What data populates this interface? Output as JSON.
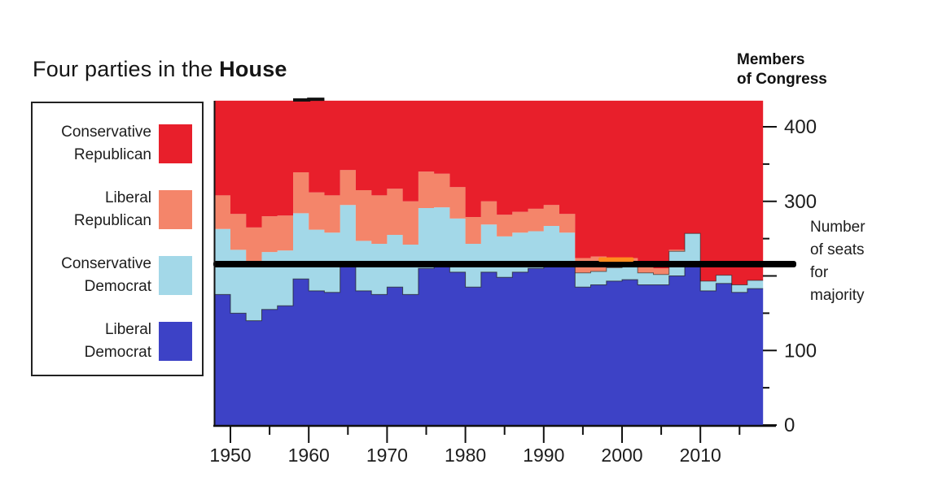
{
  "title": {
    "prefix": "Four parties in the ",
    "bold": "House"
  },
  "legend": {
    "items": [
      {
        "line1": "Conservative",
        "line2": "Republican",
        "color": "#e81f2b"
      },
      {
        "line1": "Liberal",
        "line2": "Republican",
        "color": "#f4856a"
      },
      {
        "line1": "Conservative",
        "line2": "Democrat",
        "color": "#a3d8e8"
      },
      {
        "line1": "Liberal",
        "line2": "Democrat",
        "color": "#3d42c6"
      }
    ]
  },
  "right_axis_title": {
    "line1": "Members",
    "line2": "of Congress"
  },
  "majority_annotation": {
    "line1": "Number",
    "line2": "of seats",
    "line3": "for",
    "line4": "majority"
  },
  "chart_data": {
    "type": "area",
    "subtype": "stacked-step-area",
    "title": "Four parties in the House",
    "ylabel": "Members of Congress",
    "x_range": [
      1948,
      2018
    ],
    "y_range": [
      0,
      435
    ],
    "x_tick_labels": [
      "1950",
      "1960",
      "1970",
      "1980",
      "1990",
      "2000",
      "2010"
    ],
    "x_ticks_major": [
      1950,
      1960,
      1970,
      1980,
      1990,
      2000,
      2010
    ],
    "x_ticks_minor": [
      1955,
      1965,
      1975,
      1985,
      1995,
      2005,
      2015
    ],
    "y_ticks": [
      {
        "seats": 400,
        "label": "400",
        "major": true
      },
      {
        "seats": 350,
        "label": "",
        "major": false
      },
      {
        "seats": 300,
        "label": "300",
        "major": true
      },
      {
        "seats": 250,
        "label": "",
        "major": false
      },
      {
        "seats": 200,
        "label": "",
        "major": true
      },
      {
        "seats": 150,
        "label": "",
        "major": false
      },
      {
        "seats": 100,
        "label": "100",
        "major": true
      },
      {
        "seats": 50,
        "label": "",
        "major": false
      },
      {
        "seats": 0,
        "label": "0",
        "major": true
      }
    ],
    "majority_line": {
      "seats": 218,
      "color": "#000000",
      "label": "Number of seats for majority"
    },
    "series": [
      {
        "key": "ld",
        "name": "Liberal Democrat",
        "color": "#3d42c6"
      },
      {
        "key": "cd",
        "name": "Conservative Democrat",
        "color": "#a3d8e8"
      },
      {
        "key": "lr",
        "name": "Liberal Republican",
        "color": "#f4856a"
      },
      {
        "key": "cr",
        "name": "Conservative Republican",
        "color": "#e81f2b"
      }
    ],
    "congresses": [
      {
        "year": 1948,
        "ld": 175,
        "cd": 88,
        "lr": 45,
        "cr": 127,
        "size": 435
      },
      {
        "year": 1950,
        "ld": 150,
        "cd": 85,
        "lr": 48,
        "cr": 152,
        "size": 435
      },
      {
        "year": 1952,
        "ld": 140,
        "cd": 73,
        "lr": 52,
        "cr": 170,
        "size": 435
      },
      {
        "year": 1954,
        "ld": 155,
        "cd": 77,
        "lr": 48,
        "cr": 155,
        "size": 435
      },
      {
        "year": 1956,
        "ld": 160,
        "cd": 74,
        "lr": 47,
        "cr": 154,
        "size": 435
      },
      {
        "year": 1958,
        "ld": 196,
        "cd": 88,
        "lr": 55,
        "cr": 97,
        "size": 436
      },
      {
        "year": 1960,
        "ld": 180,
        "cd": 82,
        "lr": 50,
        "cr": 125,
        "size": 437
      },
      {
        "year": 1962,
        "ld": 178,
        "cd": 80,
        "lr": 50,
        "cr": 127,
        "size": 435
      },
      {
        "year": 1964,
        "ld": 215,
        "cd": 80,
        "lr": 47,
        "cr": 93,
        "size": 435
      },
      {
        "year": 1966,
        "ld": 180,
        "cd": 67,
        "lr": 68,
        "cr": 120,
        "size": 435
      },
      {
        "year": 1968,
        "ld": 175,
        "cd": 68,
        "lr": 65,
        "cr": 127,
        "size": 435
      },
      {
        "year": 1970,
        "ld": 185,
        "cd": 70,
        "lr": 62,
        "cr": 118,
        "size": 435
      },
      {
        "year": 1972,
        "ld": 175,
        "cd": 67,
        "lr": 58,
        "cr": 135,
        "size": 435
      },
      {
        "year": 1974,
        "ld": 210,
        "cd": 81,
        "lr": 49,
        "cr": 95,
        "size": 435
      },
      {
        "year": 1976,
        "ld": 212,
        "cd": 80,
        "lr": 45,
        "cr": 98,
        "size": 435
      },
      {
        "year": 1978,
        "ld": 205,
        "cd": 72,
        "lr": 42,
        "cr": 116,
        "size": 435
      },
      {
        "year": 1980,
        "ld": 185,
        "cd": 58,
        "lr": 36,
        "cr": 156,
        "size": 435
      },
      {
        "year": 1982,
        "ld": 205,
        "cd": 64,
        "lr": 31,
        "cr": 135,
        "size": 435
      },
      {
        "year": 1984,
        "ld": 198,
        "cd": 55,
        "lr": 29,
        "cr": 153,
        "size": 435
      },
      {
        "year": 1986,
        "ld": 205,
        "cd": 53,
        "lr": 28,
        "cr": 149,
        "size": 435
      },
      {
        "year": 1988,
        "ld": 210,
        "cd": 50,
        "lr": 30,
        "cr": 145,
        "size": 435
      },
      {
        "year": 1990,
        "ld": 217,
        "cd": 50,
        "lr": 28,
        "cr": 140,
        "size": 435
      },
      {
        "year": 1992,
        "ld": 215,
        "cd": 43,
        "lr": 25,
        "cr": 152,
        "size": 435
      },
      {
        "year": 1994,
        "ld": 185,
        "cd": 19,
        "lr": 20,
        "cr": 211,
        "size": 435
      },
      {
        "year": 1996,
        "ld": 188,
        "cd": 18,
        "lr": 20,
        "cr": 209,
        "size": 435
      },
      {
        "year": 1998,
        "ld": 193,
        "cd": 18,
        "lr": 13,
        "cr": 211,
        "size": 435
      },
      {
        "year": 2000,
        "ld": 195,
        "cd": 17,
        "lr": 12,
        "cr": 211,
        "size": 435
      },
      {
        "year": 2002,
        "ld": 188,
        "cd": 16,
        "lr": 14,
        "cr": 217,
        "size": 435
      },
      {
        "year": 2004,
        "ld": 188,
        "cd": 14,
        "lr": 8,
        "cr": 225,
        "size": 435
      },
      {
        "year": 2006,
        "ld": 200,
        "cd": 33,
        "lr": 2,
        "cr": 200,
        "size": 435
      },
      {
        "year": 2008,
        "ld": 212,
        "cd": 45,
        "lr": 0,
        "cr": 178,
        "size": 435
      },
      {
        "year": 2010,
        "ld": 180,
        "cd": 13,
        "lr": 0,
        "cr": 242,
        "size": 435
      },
      {
        "year": 2012,
        "ld": 190,
        "cd": 11,
        "lr": 0,
        "cr": 234,
        "size": 435
      },
      {
        "year": 2014,
        "ld": 178,
        "cd": 10,
        "lr": 0,
        "cr": 247,
        "size": 435
      },
      {
        "year": 2016,
        "ld": 183,
        "cd": 11,
        "lr": 0,
        "cr": 241,
        "size": 435
      }
    ],
    "overlays": [
      {
        "name": "orange-marker",
        "year_start": 1997,
        "year_end": 2001.5,
        "seat_bottom": 219,
        "seat_top": 225,
        "color": "#ff8c1e"
      }
    ],
    "legend_position": "left",
    "grid": false
  }
}
